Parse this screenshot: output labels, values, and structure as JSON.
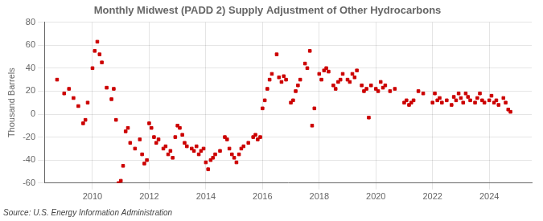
{
  "chart_data": {
    "type": "scatter",
    "title": "Monthly Midwest (PADD 2) Supply Adjustment of Other Hydrocarbons",
    "ylabel": "Thousand Barrels",
    "annotation": "Source: U.S. Energy Information Administration",
    "color": "#cc0000",
    "marker": "square",
    "grid": true,
    "xlim": [
      2008.3,
      2025.5
    ],
    "xticks": [
      2010,
      2012,
      2014,
      2016,
      2018,
      2020,
      2022,
      2024
    ],
    "ylim": [
      -60,
      80
    ],
    "yticks": [
      -60,
      -40,
      -20,
      0,
      20,
      40,
      60,
      80
    ],
    "x": [
      2008.75,
      2009.0,
      2009.17,
      2009.33,
      2009.5,
      2009.67,
      2009.75,
      2009.83,
      2010.0,
      2010.08,
      2010.17,
      2010.25,
      2010.33,
      2010.5,
      2010.67,
      2010.75,
      2010.83,
      2010.92,
      2011.0,
      2011.08,
      2011.17,
      2011.25,
      2011.33,
      2011.5,
      2011.67,
      2011.75,
      2011.83,
      2011.92,
      2012.0,
      2012.08,
      2012.17,
      2012.25,
      2012.33,
      2012.5,
      2012.58,
      2012.67,
      2012.75,
      2012.83,
      2012.92,
      2013.0,
      2013.08,
      2013.17,
      2013.25,
      2013.33,
      2013.5,
      2013.58,
      2013.67,
      2013.75,
      2013.83,
      2013.92,
      2014.0,
      2014.08,
      2014.17,
      2014.25,
      2014.33,
      2014.5,
      2014.67,
      2014.75,
      2014.83,
      2014.92,
      2015.0,
      2015.08,
      2015.17,
      2015.25,
      2015.33,
      2015.5,
      2015.67,
      2015.75,
      2015.83,
      2015.92,
      2016.0,
      2016.08,
      2016.17,
      2016.25,
      2016.33,
      2016.5,
      2016.58,
      2016.67,
      2016.75,
      2016.83,
      2017.0,
      2017.08,
      2017.17,
      2017.25,
      2017.33,
      2017.5,
      2017.58,
      2017.67,
      2017.75,
      2017.83,
      2018.0,
      2018.08,
      2018.17,
      2018.25,
      2018.33,
      2018.5,
      2018.58,
      2018.67,
      2018.75,
      2018.83,
      2019.0,
      2019.08,
      2019.17,
      2019.25,
      2019.33,
      2019.5,
      2019.58,
      2019.67,
      2019.75,
      2019.83,
      2020.0,
      2020.08,
      2020.17,
      2020.25,
      2020.33,
      2020.5,
      2020.67,
      2021.0,
      2021.08,
      2021.17,
      2021.25,
      2021.33,
      2021.5,
      2021.67,
      2022.0,
      2022.08,
      2022.17,
      2022.25,
      2022.33,
      2022.5,
      2022.67,
      2022.75,
      2022.83,
      2022.92,
      2023.0,
      2023.08,
      2023.17,
      2023.25,
      2023.33,
      2023.5,
      2023.58,
      2023.67,
      2023.75,
      2023.83,
      2024.0,
      2024.08,
      2024.17,
      2024.25,
      2024.33,
      2024.5,
      2024.58,
      2024.67,
      2024.75
    ],
    "values": [
      30,
      18,
      22,
      14,
      7,
      -8,
      -5,
      10,
      40,
      55,
      63,
      52,
      45,
      23,
      13,
      22,
      -5,
      -60,
      -58,
      -45,
      -15,
      -12,
      -25,
      -30,
      -22,
      -35,
      -43,
      -40,
      -8,
      -12,
      -20,
      -25,
      -22,
      -30,
      -28,
      -35,
      -32,
      -38,
      -20,
      -10,
      -12,
      -18,
      -25,
      -28,
      -30,
      -32,
      -28,
      -35,
      -32,
      -30,
      -42,
      -48,
      -40,
      -38,
      -35,
      -32,
      -20,
      -22,
      -30,
      -35,
      -38,
      -42,
      -35,
      -30,
      -28,
      -25,
      -20,
      -18,
      -22,
      -20,
      5,
      12,
      22,
      30,
      35,
      52,
      32,
      28,
      33,
      30,
      10,
      12,
      20,
      25,
      30,
      44,
      40,
      55,
      -10,
      5,
      35,
      30,
      38,
      40,
      37,
      25,
      22,
      28,
      30,
      35,
      30,
      28,
      35,
      32,
      38,
      25,
      20,
      22,
      -3,
      25,
      22,
      20,
      28,
      23,
      25,
      20,
      22,
      10,
      12,
      8,
      10,
      12,
      20,
      18,
      10,
      18,
      12,
      14,
      10,
      12,
      8,
      15,
      12,
      18,
      14,
      10,
      18,
      15,
      12,
      10,
      14,
      18,
      12,
      10,
      12,
      16,
      10,
      12,
      8,
      14,
      10,
      4,
      2
    ]
  }
}
